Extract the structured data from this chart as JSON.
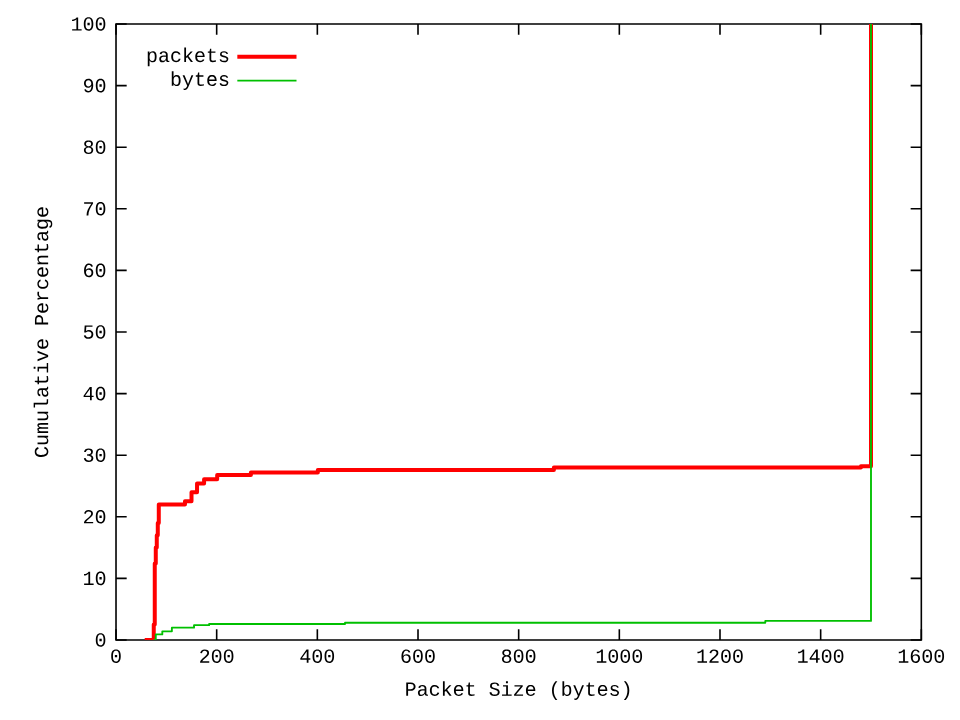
{
  "chart_data": {
    "type": "step",
    "xlabel": "Packet Size (bytes)",
    "ylabel": "Cumulative Percentage",
    "xlim": [
      0,
      1600
    ],
    "ylim": [
      0,
      100
    ],
    "xticks": [
      0,
      200,
      400,
      600,
      800,
      1000,
      1200,
      1400,
      1600
    ],
    "yticks": [
      0,
      10,
      20,
      30,
      40,
      50,
      60,
      70,
      80,
      90,
      100
    ],
    "grid": false,
    "legend": "top left",
    "marker": "none",
    "line_style": "solid",
    "series": [
      {
        "name": "packets",
        "color": "#ff0000",
        "x": [
          57,
          75,
          77,
          79,
          81,
          83,
          85,
          90,
          137,
          150,
          161,
          175,
          201,
          268,
          401,
          870,
          1480,
          1500
        ],
        "values": [
          0,
          2.5,
          12.4,
          15,
          17,
          19,
          22,
          22,
          22.5,
          24,
          25.4,
          26.1,
          26.8,
          27.2,
          27.6,
          28,
          28.2,
          100
        ]
      },
      {
        "name": "bytes",
        "color": "#00c000",
        "x": [
          75,
          79,
          92,
          111,
          155,
          185,
          455,
          1290,
          1500
        ],
        "values": [
          0,
          0.9,
          1.4,
          2.0,
          2.4,
          2.6,
          2.8,
          3.1,
          100
        ]
      }
    ]
  }
}
